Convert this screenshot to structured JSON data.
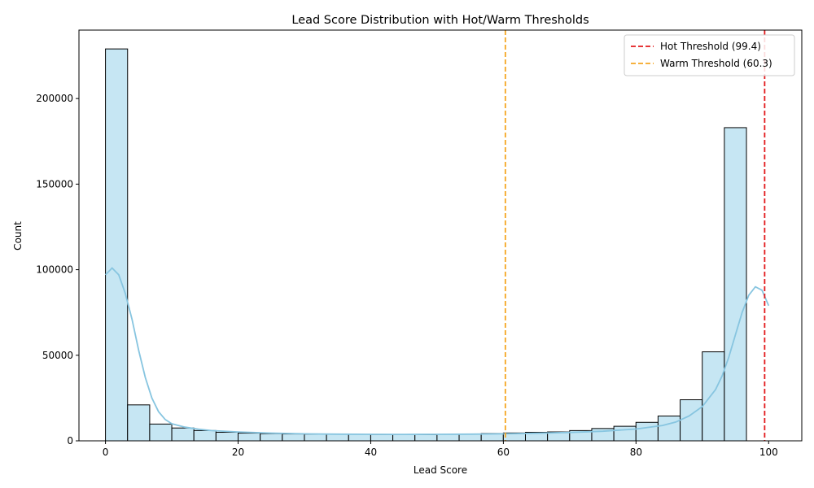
{
  "chart_data": {
    "type": "bar",
    "subtype": "histogram",
    "title": "Lead Score Distribution with Hot/Warm Thresholds",
    "xlabel": "Lead Score",
    "ylabel": "Count",
    "xlim": [
      -4,
      105
    ],
    "ylim": [
      0,
      240000
    ],
    "xticks": [
      0,
      20,
      40,
      60,
      80,
      100
    ],
    "yticks": [
      0,
      50000,
      100000,
      150000,
      200000
    ],
    "bins": {
      "start": 0,
      "width": 3.333,
      "counts": [
        229000,
        21000,
        9800,
        7500,
        6000,
        5000,
        4500,
        4200,
        4000,
        3900,
        3800,
        3800,
        3700,
        3700,
        3600,
        3800,
        4000,
        4300,
        4600,
        5000,
        5200,
        6000,
        7200,
        8500,
        10800,
        14500,
        24000,
        52000,
        183000
      ]
    },
    "kde": {
      "x": [
        0,
        1,
        2,
        3,
        4,
        5,
        6,
        7,
        8,
        9,
        10,
        12,
        14,
        16,
        20,
        25,
        30,
        35,
        40,
        45,
        50,
        55,
        60,
        65,
        70,
        75,
        80,
        84,
        86,
        88,
        90,
        92,
        93,
        94,
        95,
        96,
        97,
        98,
        99,
        100
      ],
      "y": [
        97000,
        101000,
        97000,
        86000,
        71000,
        53000,
        37000,
        25000,
        17000,
        12500,
        10000,
        8000,
        6800,
        6000,
        5200,
        4500,
        4100,
        3900,
        3800,
        3750,
        3800,
        3900,
        4100,
        4400,
        4900,
        5600,
        6900,
        9000,
        11000,
        14500,
        20000,
        30000,
        38000,
        49000,
        62000,
        75000,
        85000,
        90000,
        88000,
        79000
      ]
    },
    "thresholds": [
      {
        "name": "Hot Threshold (99.4)",
        "value": 99.4,
        "color": "#e31a1c"
      },
      {
        "name": "Warm Threshold (60.3)",
        "value": 60.3,
        "color": "#f5a623"
      }
    ],
    "colors": {
      "bar_fill": "#c6e6f3",
      "bar_edge": "#000000",
      "kde": "#87c5e0"
    },
    "legend_placement": "top-right",
    "grid": false
  }
}
